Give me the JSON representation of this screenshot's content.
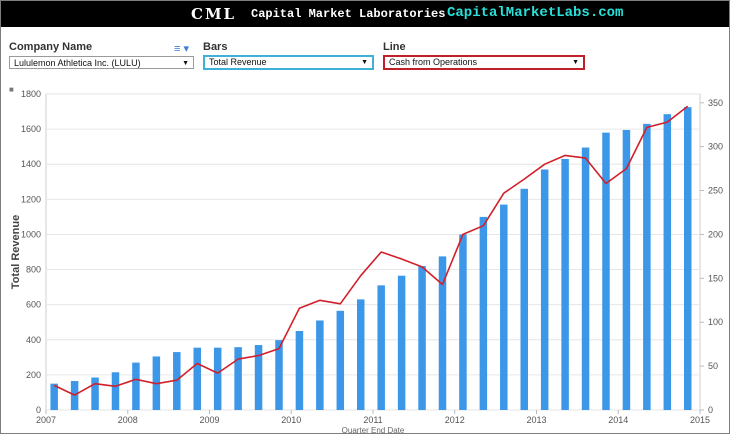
{
  "banner": {
    "logo": "CML",
    "name": "Capital Market Laboratories",
    "site": "CapitalMarketLabs.com"
  },
  "controls": {
    "company": {
      "label": "Company Name",
      "value": "Lululemon Athletica Inc. (LULU)"
    },
    "bars": {
      "label": "Bars",
      "value": "Total Revenue"
    },
    "line": {
      "label": "Line",
      "value": "Cash from Operations"
    },
    "menu_icon": "list-filter-icon"
  },
  "colors": {
    "bar": "#3d97e8",
    "line": "#d1202a",
    "bars_border": "#3fb0d6",
    "line_border": "#c0202a"
  },
  "chart_data": {
    "type": "bar",
    "title": "",
    "xlabel": "Quarter End Date",
    "ylabel": "Total Revenue",
    "y_left_range": [
      0,
      1800
    ],
    "y_left_ticks": [
      "0",
      "200",
      "400",
      "600",
      "800",
      "1000",
      "1200",
      "1400",
      "1600",
      "1800"
    ],
    "y_right_range": [
      0,
      360
    ],
    "y_right_ticks": [
      "0",
      "50",
      "100",
      "150",
      "200",
      "250",
      "300",
      "350"
    ],
    "x_range": [
      2007,
      2015
    ],
    "x_ticks": [
      "2007",
      "2008",
      "2009",
      "2010",
      "2011",
      "2012",
      "2013",
      "2014",
      "2015"
    ],
    "grid": true,
    "series": [
      {
        "name": "Total Revenue",
        "kind": "bar",
        "axis": "left",
        "x": [
          2007.1,
          2007.35,
          2007.6,
          2007.85,
          2008.1,
          2008.35,
          2008.6,
          2008.85,
          2009.1,
          2009.35,
          2009.6,
          2009.85,
          2010.1,
          2010.35,
          2010.6,
          2010.85,
          2011.1,
          2011.35,
          2011.6,
          2011.85,
          2012.1,
          2012.35,
          2012.6,
          2012.85,
          2013.1,
          2013.35,
          2013.6,
          2013.85,
          2014.1,
          2014.35,
          2014.6,
          2014.85
        ],
        "values": [
          150,
          165,
          185,
          215,
          270,
          305,
          330,
          355,
          355,
          358,
          370,
          398,
          450,
          510,
          565,
          630,
          710,
          765,
          820,
          875,
          1000,
          1100,
          1170,
          1260,
          1370,
          1430,
          1495,
          1580,
          1595,
          1630,
          1685,
          1725
        ]
      },
      {
        "name": "Cash from Operations",
        "kind": "line",
        "axis": "right",
        "x": [
          2007.1,
          2007.35,
          2007.6,
          2007.85,
          2008.1,
          2008.35,
          2008.6,
          2008.85,
          2009.1,
          2009.35,
          2009.6,
          2009.85,
          2010.1,
          2010.35,
          2010.6,
          2010.85,
          2011.1,
          2011.35,
          2011.6,
          2011.85,
          2012.1,
          2012.35,
          2012.6,
          2012.85,
          2013.1,
          2013.35,
          2013.6,
          2013.85,
          2014.1,
          2014.35,
          2014.6,
          2014.85
        ],
        "values": [
          28,
          17,
          30,
          27,
          35,
          30,
          34,
          53,
          42,
          58,
          62,
          70,
          116,
          125,
          121,
          153,
          180,
          172,
          163,
          143,
          200,
          210,
          247,
          263,
          280,
          290,
          287,
          258,
          275,
          322,
          328,
          346
        ]
      }
    ]
  }
}
